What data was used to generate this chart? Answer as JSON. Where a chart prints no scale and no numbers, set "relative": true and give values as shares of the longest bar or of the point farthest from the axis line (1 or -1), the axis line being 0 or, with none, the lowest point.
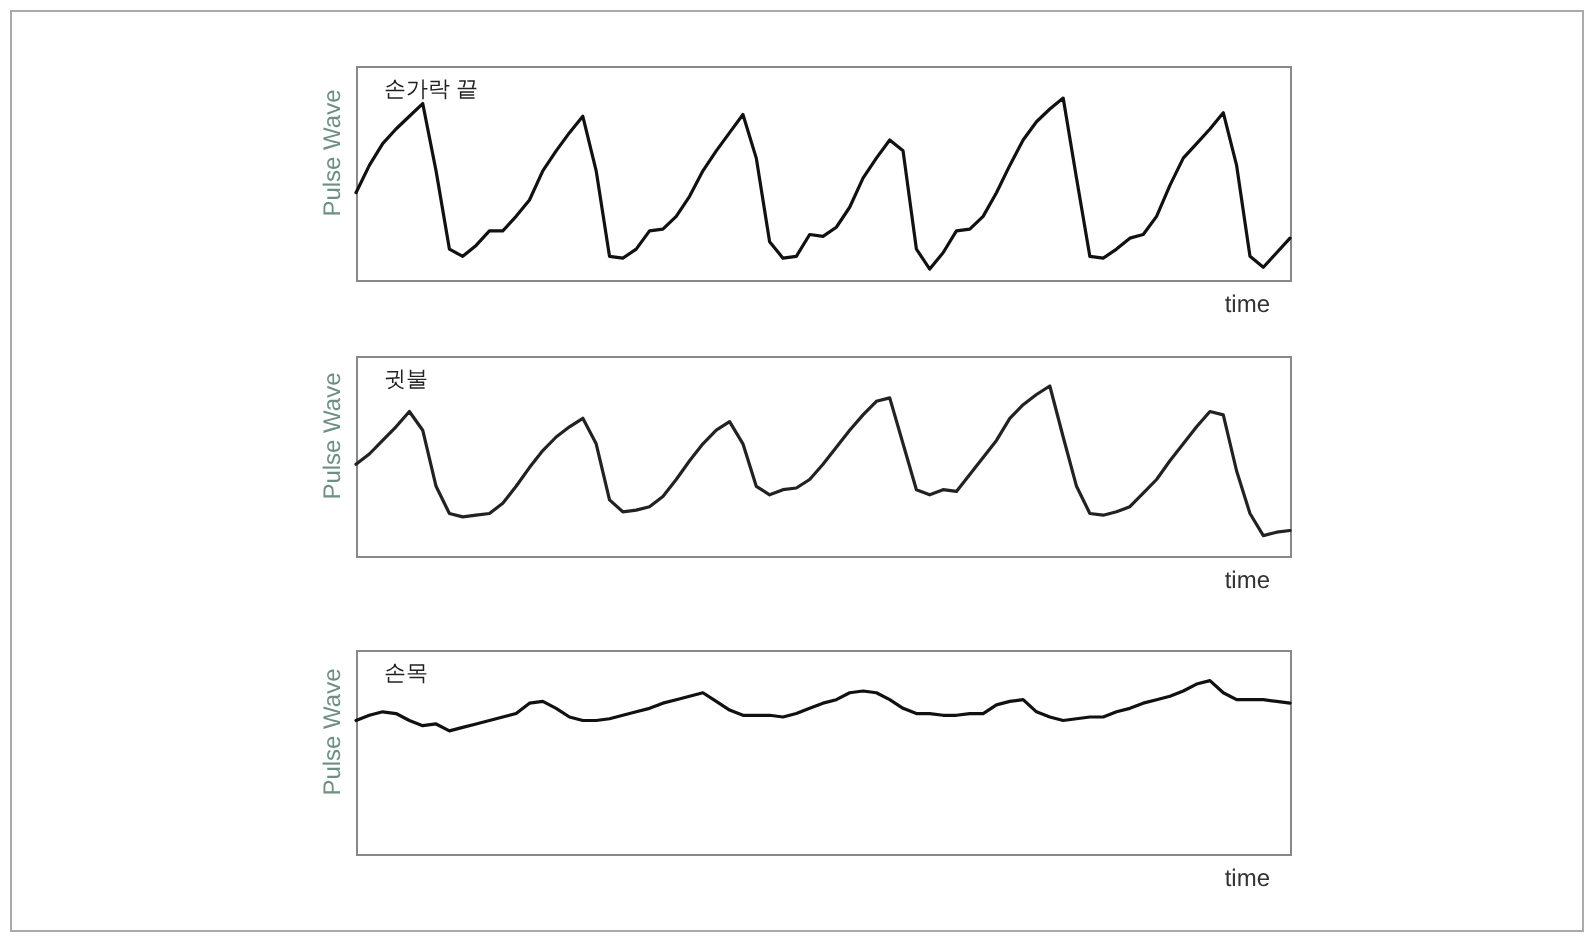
{
  "chart_data": [
    {
      "type": "line",
      "title": "손가락 끝",
      "xlabel": "time",
      "ylabel": "Pulse Wave",
      "relative": true,
      "color": "#111111",
      "categories": [
        null,
        null,
        null,
        null,
        null,
        null,
        null,
        null,
        null,
        null,
        null,
        null,
        null,
        null,
        null,
        null,
        null,
        null,
        null,
        null,
        null,
        null,
        null,
        null,
        null,
        null,
        null,
        null,
        null,
        null,
        null,
        null,
        null,
        null,
        null,
        null,
        null,
        null,
        null,
        null,
        null,
        null,
        null,
        null,
        null,
        null,
        null,
        null,
        null,
        null,
        null,
        null,
        null,
        null,
        null,
        null,
        null,
        null,
        null,
        null,
        null,
        null,
        null,
        null,
        null,
        null,
        null,
        null,
        null,
        null,
        null
      ],
      "values": [
        0.48,
        0.63,
        0.75,
        0.83,
        0.9,
        0.97,
        0.6,
        0.17,
        0.13,
        0.19,
        0.27,
        0.27,
        0.35,
        0.44,
        0.6,
        0.71,
        0.81,
        0.9,
        0.6,
        0.13,
        0.12,
        0.17,
        0.27,
        0.28,
        0.35,
        0.46,
        0.6,
        0.71,
        0.81,
        0.91,
        0.67,
        0.21,
        0.12,
        0.13,
        0.25,
        0.24,
        0.29,
        0.4,
        0.56,
        0.67,
        0.77,
        0.71,
        0.17,
        0.06,
        0.15,
        0.27,
        0.28,
        0.35,
        0.48,
        0.63,
        0.77,
        0.87,
        0.94,
        1.0,
        0.56,
        0.13,
        0.12,
        0.17,
        0.23,
        0.25,
        0.35,
        0.52,
        0.67,
        0.75,
        0.83,
        0.92,
        0.63,
        0.13,
        0.07,
        0.15,
        0.23
      ]
    },
    {
      "type": "line",
      "title": "귓불",
      "xlabel": "time",
      "ylabel": "Pulse Wave",
      "relative": true,
      "color": "#222222",
      "categories": [
        null,
        null,
        null,
        null,
        null,
        null,
        null,
        null,
        null,
        null,
        null,
        null,
        null,
        null,
        null,
        null,
        null,
        null,
        null,
        null,
        null,
        null,
        null,
        null,
        null,
        null,
        null,
        null,
        null,
        null,
        null,
        null,
        null,
        null,
        null,
        null,
        null,
        null,
        null,
        null,
        null,
        null,
        null,
        null,
        null,
        null,
        null,
        null,
        null,
        null,
        null,
        null,
        null,
        null,
        null,
        null,
        null,
        null,
        null,
        null,
        null,
        null,
        null,
        null,
        null,
        null,
        null,
        null,
        null,
        null,
        null
      ],
      "values": [
        0.54,
        0.6,
        0.68,
        0.76,
        0.85,
        0.74,
        0.41,
        0.25,
        0.23,
        0.24,
        0.25,
        0.31,
        0.41,
        0.52,
        0.62,
        0.7,
        0.76,
        0.81,
        0.66,
        0.33,
        0.26,
        0.27,
        0.29,
        0.35,
        0.45,
        0.56,
        0.66,
        0.74,
        0.79,
        0.66,
        0.41,
        0.36,
        0.39,
        0.4,
        0.45,
        0.54,
        0.64,
        0.74,
        0.83,
        0.91,
        0.93,
        0.66,
        0.39,
        0.36,
        0.39,
        0.38,
        0.48,
        0.58,
        0.68,
        0.81,
        0.89,
        0.95,
        1.0,
        0.7,
        0.41,
        0.25,
        0.24,
        0.26,
        0.29,
        0.37,
        0.45,
        0.56,
        0.66,
        0.76,
        0.85,
        0.83,
        0.5,
        0.25,
        0.12,
        0.14,
        0.15
      ]
    },
    {
      "type": "line",
      "title": "손목",
      "xlabel": "time",
      "ylabel": "Pulse Wave",
      "relative": true,
      "color": "#111111",
      "categories": [
        null,
        null,
        null,
        null,
        null,
        null,
        null,
        null,
        null,
        null,
        null,
        null,
        null,
        null,
        null,
        null,
        null,
        null,
        null,
        null,
        null,
        null,
        null,
        null,
        null,
        null,
        null,
        null,
        null,
        null,
        null,
        null,
        null,
        null,
        null,
        null,
        null,
        null,
        null,
        null,
        null,
        null,
        null,
        null,
        null,
        null,
        null,
        null,
        null,
        null,
        null,
        null,
        null,
        null,
        null,
        null,
        null,
        null,
        null,
        null,
        null,
        null,
        null,
        null,
        null,
        null,
        null,
        null,
        null,
        null,
        null
      ],
      "values": [
        0.77,
        0.8,
        0.82,
        0.81,
        0.77,
        0.74,
        0.75,
        0.71,
        0.73,
        0.75,
        0.77,
        0.79,
        0.81,
        0.87,
        0.88,
        0.84,
        0.79,
        0.77,
        0.77,
        0.78,
        0.8,
        0.82,
        0.84,
        0.87,
        0.89,
        0.91,
        0.93,
        0.88,
        0.83,
        0.8,
        0.8,
        0.8,
        0.79,
        0.81,
        0.84,
        0.87,
        0.89,
        0.93,
        0.94,
        0.93,
        0.89,
        0.84,
        0.81,
        0.81,
        0.8,
        0.8,
        0.81,
        0.81,
        0.86,
        0.88,
        0.89,
        0.82,
        0.79,
        0.77,
        0.78,
        0.79,
        0.79,
        0.82,
        0.84,
        0.87,
        0.89,
        0.91,
        0.94,
        0.98,
        1.0,
        0.93,
        0.89,
        0.89,
        0.89,
        0.88,
        0.87
      ]
    }
  ]
}
